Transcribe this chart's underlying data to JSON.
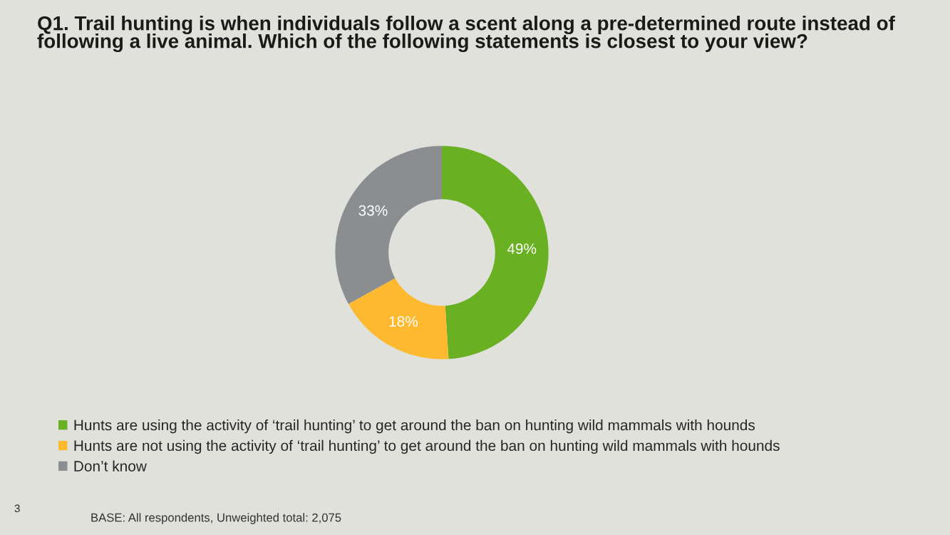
{
  "chart_data": {
    "type": "donut",
    "title": "Q1. Trail hunting is when individuals follow a scent along a pre-determined route instead of following a live animal. Which of the following statements is closest to your view?",
    "categories": [
      "Hunts are using the activity of ‘trail hunting’ to get around the ban on hunting wild mammals with hounds",
      "Hunts are not using the activity of ‘trail hunting’ to get around the ban on hunting wild mammals with hounds",
      "Don’t know"
    ],
    "values": [
      49,
      18,
      33
    ],
    "colors": [
      "#6ab023",
      "#fdb92f",
      "#8b8e91"
    ],
    "value_labels": [
      "49%",
      "18%",
      "33%"
    ],
    "legend": "bottom",
    "annotations": [
      "3",
      "BASE: All respondents, Unweighted total: 2,075"
    ]
  }
}
